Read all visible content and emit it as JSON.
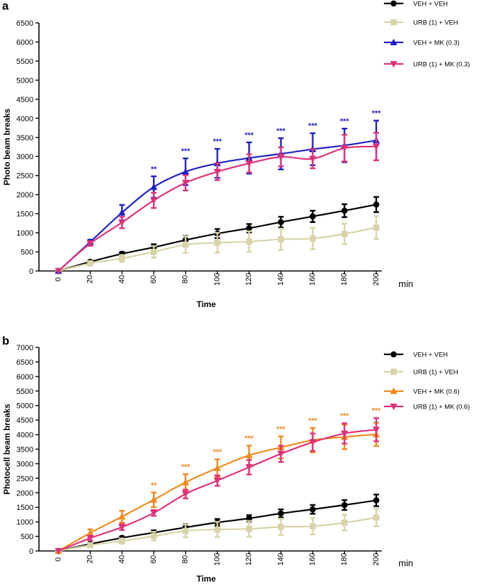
{
  "chart_data": [
    {
      "panel": "a",
      "type": "line",
      "ylabel": "Photo beam breaks",
      "xlabel": "Time",
      "x_unit": "min",
      "x": [
        0,
        20,
        40,
        60,
        80,
        100,
        120,
        140,
        160,
        180,
        200
      ],
      "ylim": [
        0,
        6500
      ],
      "yticks": [
        0,
        500,
        1000,
        1500,
        2000,
        2500,
        3000,
        3500,
        4000,
        4500,
        5000,
        5500,
        6000,
        6500
      ],
      "legend_position": "top-right",
      "series": [
        {
          "name": "VEH + VEH",
          "color": "#000000",
          "marker": "circle",
          "values": [
            0,
            240,
            450,
            620,
            810,
            980,
            1120,
            1280,
            1430,
            1580,
            1740
          ],
          "errors": [
            0,
            40,
            50,
            80,
            110,
            120,
            110,
            140,
            150,
            170,
            200
          ]
        },
        {
          "name": "URB (1) + VEH",
          "color": "#d8d3a8",
          "marker": "square",
          "values": [
            0,
            200,
            330,
            500,
            690,
            740,
            770,
            830,
            850,
            970,
            1140
          ],
          "errors": [
            0,
            60,
            90,
            150,
            220,
            260,
            270,
            280,
            280,
            270,
            300
          ]
        },
        {
          "name": "VEH + MK (0.3)",
          "color": "#1f1fc8",
          "marker": "triangle-up",
          "values": [
            0,
            760,
            1530,
            2200,
            2600,
            2820,
            2960,
            3070,
            3190,
            3290,
            3420
          ],
          "errors": [
            0,
            60,
            200,
            280,
            350,
            380,
            410,
            410,
            420,
            440,
            520
          ]
        },
        {
          "name": "URB (1) + MK (0.3)",
          "color": "#e0307a",
          "marker": "triangle-down",
          "values": [
            0,
            720,
            1270,
            1850,
            2310,
            2600,
            2820,
            2990,
            2940,
            3220,
            3260
          ],
          "errors": [
            0,
            60,
            150,
            200,
            200,
            220,
            240,
            250,
            250,
            350,
            360
          ]
        }
      ],
      "significance": {
        "color": "#1f1fc8",
        "labels": [
          {
            "x": 60,
            "text": "**"
          },
          {
            "x": 80,
            "text": "***"
          },
          {
            "x": 100,
            "text": "***"
          },
          {
            "x": 120,
            "text": "***"
          },
          {
            "x": 140,
            "text": "***"
          },
          {
            "x": 160,
            "text": "***"
          },
          {
            "x": 180,
            "text": "***"
          },
          {
            "x": 200,
            "text": "***"
          }
        ]
      }
    },
    {
      "panel": "b",
      "type": "line",
      "ylabel": "Photocell beam breaks",
      "xlabel": "Time",
      "x_unit": "min",
      "x": [
        0,
        20,
        40,
        60,
        80,
        100,
        120,
        140,
        160,
        180,
        200
      ],
      "ylim": [
        0,
        7000
      ],
      "yticks": [
        0,
        500,
        1000,
        1500,
        2000,
        2500,
        3000,
        3500,
        4000,
        4500,
        5000,
        5500,
        6000,
        6500,
        7000
      ],
      "legend_position": "top-right",
      "series": [
        {
          "name": "VEH + VEH",
          "color": "#000000",
          "marker": "circle",
          "values": [
            0,
            240,
            450,
            630,
            810,
            980,
            1120,
            1290,
            1430,
            1580,
            1740
          ],
          "errors": [
            0,
            40,
            50,
            80,
            110,
            120,
            110,
            140,
            150,
            170,
            200
          ]
        },
        {
          "name": "URB (1) + VEH",
          "color": "#d8d3a8",
          "marker": "square",
          "values": [
            0,
            200,
            340,
            510,
            690,
            740,
            760,
            830,
            850,
            970,
            1150
          ],
          "errors": [
            0,
            60,
            90,
            150,
            220,
            260,
            270,
            280,
            280,
            270,
            300
          ]
        },
        {
          "name": "VEH + MK (0.6)",
          "color": "#f08a1c",
          "marker": "triangle-up",
          "values": [
            0,
            620,
            1180,
            1760,
            2360,
            2850,
            3290,
            3560,
            3810,
            3920,
            4010
          ],
          "errors": [
            0,
            120,
            200,
            250,
            280,
            300,
            330,
            380,
            420,
            420,
            400
          ]
        },
        {
          "name": "URB (1) + MK (0.6)",
          "color": "#e0307a",
          "marker": "triangle-down",
          "values": [
            0,
            440,
            820,
            1310,
            1960,
            2420,
            2880,
            3340,
            3740,
            4040,
            4170
          ],
          "errors": [
            0,
            80,
            100,
            100,
            150,
            180,
            250,
            280,
            300,
            350,
            400
          ]
        }
      ],
      "significance": {
        "color": "#f08a1c",
        "labels": [
          {
            "x": 60,
            "text": "**"
          },
          {
            "x": 80,
            "text": "***"
          },
          {
            "x": 100,
            "text": "***"
          },
          {
            "x": 120,
            "text": "***"
          },
          {
            "x": 140,
            "text": "***"
          },
          {
            "x": 160,
            "text": "***"
          },
          {
            "x": 180,
            "text": "***"
          },
          {
            "x": 200,
            "text": "***"
          }
        ]
      }
    }
  ]
}
